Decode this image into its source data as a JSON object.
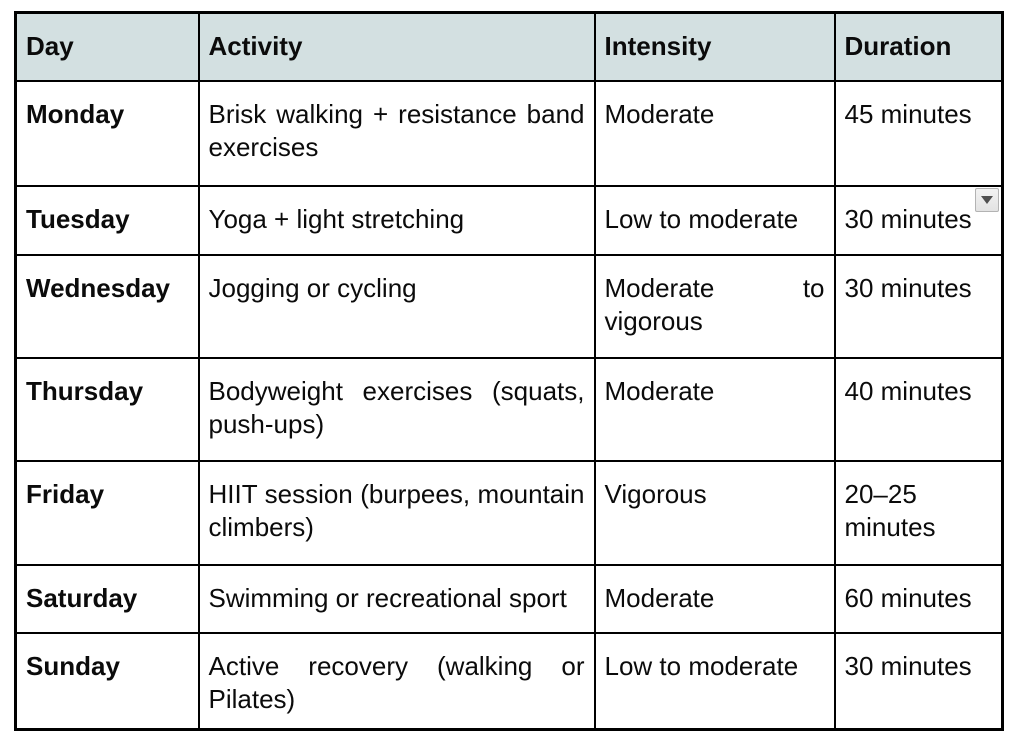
{
  "table": {
    "header_bg": "#d3e0e1",
    "border_color": "#000000",
    "columns": {
      "day": "Day",
      "activity": "Activity",
      "intensity": "Intensity",
      "duration": "Duration"
    },
    "rows": [
      {
        "day": "Monday",
        "activity": "Brisk walking + resistance band exercises",
        "intensity": "Moderate",
        "duration": "45 minutes"
      },
      {
        "day": "Tuesday",
        "activity": "Yoga + light stretching",
        "intensity": "Low to moderate",
        "duration": "30 minutes"
      },
      {
        "day": "Wednesday",
        "activity": "Jogging or cycling",
        "intensity": "Moderate to vigorous",
        "duration": "30 minutes"
      },
      {
        "day": "Thursday",
        "activity": "Bodyweight exercises (squats, push-ups)",
        "intensity": "Moderate",
        "duration": "40 minutes"
      },
      {
        "day": "Friday",
        "activity": "HIIT session (burpees, mountain climbers)",
        "intensity": "Vigorous",
        "duration": "20–25 minutes"
      },
      {
        "day": "Saturday",
        "activity": "Swimming or recreational sport",
        "intensity": "Moderate",
        "duration": "60 minutes"
      },
      {
        "day": "Sunday",
        "activity": "Active recovery (walking or Pilates)",
        "intensity": "Low to moderate",
        "duration": "30 minutes"
      }
    ],
    "dropdown_icon": "caret-down"
  }
}
